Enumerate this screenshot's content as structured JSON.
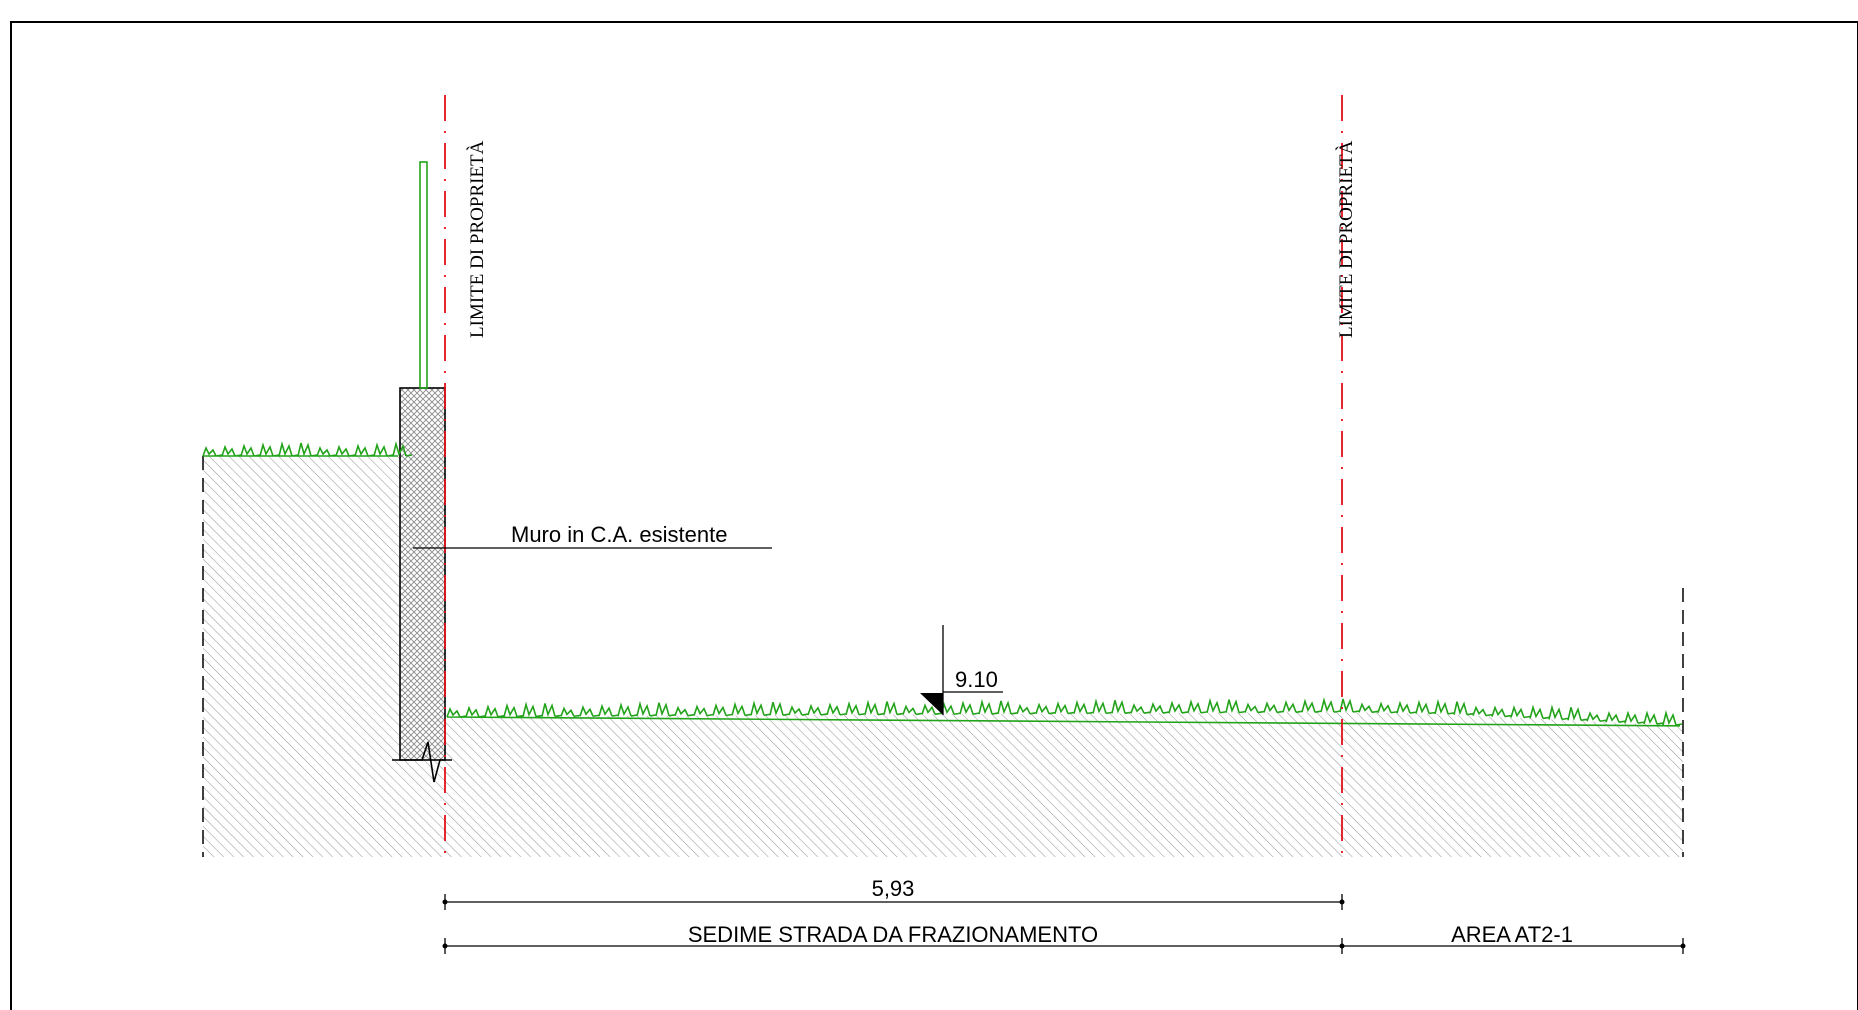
{
  "labels": {
    "property_limit_left": "LIMITE DI PROPRIETÀ",
    "property_limit_right": "LIMITE DI PROPRIETÀ",
    "wall_callout": "Muro in C.A. esistente",
    "elevation_value": "9.10",
    "dimension_value": "5,93",
    "road_area": "SEDIME STRADA DA FRAZIONAMENTO",
    "adjacent_area": "AREA AT2-1"
  },
  "colors": {
    "line": "#000000",
    "property_limit": "#e0101a",
    "grass": "#22a31a",
    "hatch": "#9a9a9a",
    "fence": "#22a31a"
  }
}
